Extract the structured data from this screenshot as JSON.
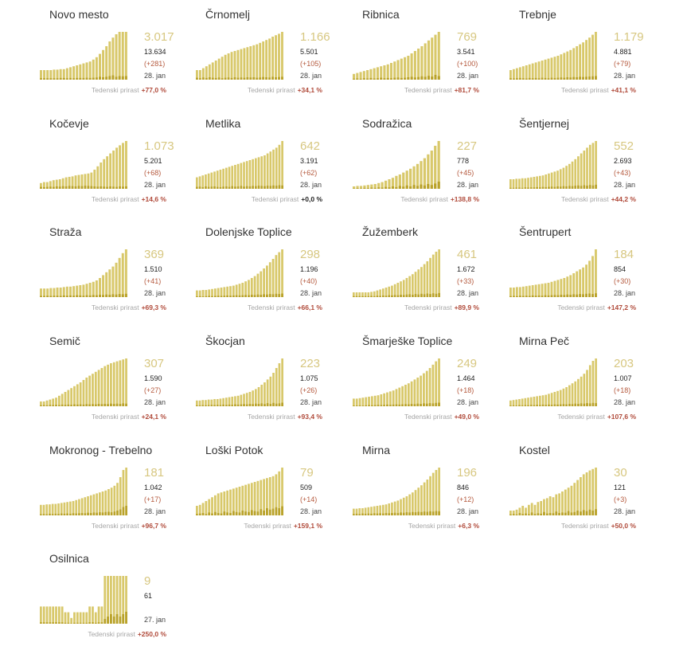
{
  "labels": {
    "growth": "Tedenski prirast"
  },
  "colors": {
    "active_fill": "#d7c97a",
    "bar": "#d8c86a",
    "new_bar": "#b9a22a",
    "growth_positive": "#b04a3a"
  },
  "chart_data": [
    {
      "type": "bar",
      "name": "Novo mesto",
      "value": "3.017",
      "total": "13.634",
      "delta": "(+281)",
      "date": "28. jan",
      "growth": "+77,0 %",
      "active": [
        20,
        20,
        20,
        20,
        21,
        21,
        22,
        22,
        24,
        26,
        28,
        30,
        32,
        34,
        36,
        38,
        42,
        47,
        54,
        62,
        70,
        80,
        88,
        95,
        100,
        100,
        100
      ],
      "new": [
        6,
        6,
        6,
        6,
        6,
        6,
        7,
        7,
        6,
        7,
        6,
        7,
        7,
        7,
        8,
        7,
        8,
        9,
        12,
        10,
        12,
        15,
        18,
        12,
        15,
        14,
        15
      ]
    },
    {
      "type": "bar",
      "name": "Črnomelj",
      "value": "1.166",
      "total": "5.501",
      "delta": "(+105)",
      "date": "28. jan",
      "growth": "+34,1 %",
      "active": [
        20,
        20,
        24,
        28,
        32,
        36,
        40,
        44,
        48,
        52,
        55,
        58,
        60,
        62,
        64,
        66,
        68,
        70,
        72,
        74,
        77,
        80,
        83,
        86,
        90,
        93,
        96,
        100
      ],
      "new": [
        8,
        6,
        9,
        7,
        10,
        8,
        7,
        9,
        6,
        8,
        9,
        7,
        10,
        8,
        9,
        8,
        10,
        9,
        10,
        8,
        9,
        11,
        10,
        9,
        12,
        10,
        11,
        12
      ]
    },
    {
      "type": "bar",
      "name": "Ribnica",
      "value": "769",
      "total": "3.541",
      "delta": "(+100)",
      "date": "28. jan",
      "growth": "+81,7 %",
      "active": [
        12,
        14,
        16,
        18,
        20,
        22,
        24,
        26,
        28,
        30,
        32,
        35,
        38,
        41,
        44,
        47,
        50,
        55,
        60,
        65,
        70,
        76,
        82,
        88,
        94,
        100
      ],
      "new": [
        4,
        5,
        4,
        6,
        5,
        7,
        5,
        6,
        8,
        6,
        7,
        6,
        8,
        9,
        7,
        8,
        10,
        12,
        9,
        11,
        14,
        12,
        16,
        13,
        20,
        15
      ]
    },
    {
      "type": "bar",
      "name": "Trebnje",
      "value": "1.179",
      "total": "4.881",
      "delta": "(+79)",
      "date": "28. jan",
      "growth": "+41,1 %",
      "active": [
        20,
        22,
        24,
        26,
        28,
        30,
        32,
        34,
        36,
        38,
        40,
        42,
        44,
        46,
        48,
        50,
        53,
        56,
        59,
        62,
        66,
        70,
        74,
        78,
        83,
        88,
        94,
        100
      ],
      "new": [
        6,
        5,
        6,
        7,
        6,
        5,
        7,
        6,
        7,
        6,
        8,
        7,
        6,
        8,
        7,
        8,
        9,
        8,
        10,
        9,
        11,
        10,
        12,
        11,
        12,
        13,
        14,
        15
      ]
    },
    {
      "type": "bar",
      "name": "Kočevje",
      "value": "1.073",
      "total": "5.201",
      "delta": "(+68)",
      "date": "28. jan",
      "growth": "+14,6 %",
      "active": [
        12,
        14,
        14,
        16,
        18,
        19,
        20,
        22,
        24,
        25,
        26,
        28,
        29,
        30,
        31,
        32,
        34,
        40,
        47,
        55,
        62,
        68,
        74,
        80,
        86,
        91,
        96,
        100
      ],
      "new": [
        8,
        7,
        8,
        9,
        8,
        10,
        9,
        11,
        10,
        12,
        11,
        10,
        12,
        11,
        13,
        12,
        11,
        10,
        9,
        10,
        9,
        8,
        10,
        9,
        8,
        10,
        9,
        10
      ]
    },
    {
      "type": "bar",
      "name": "Metlika",
      "value": "642",
      "total": "3.191",
      "delta": "(+62)",
      "date": "28. jan",
      "growth": "+0,0 %",
      "growth_zero": true,
      "active": [
        24,
        26,
        28,
        30,
        32,
        34,
        36,
        38,
        40,
        42,
        44,
        46,
        48,
        50,
        52,
        54,
        56,
        58,
        60,
        62,
        64,
        66,
        68,
        70,
        74,
        78,
        82,
        86,
        92,
        100
      ],
      "new": [
        8,
        9,
        7,
        10,
        8,
        9,
        10,
        8,
        7,
        9,
        10,
        8,
        11,
        9,
        10,
        12,
        9,
        11,
        10,
        12,
        11,
        13,
        12,
        11,
        13,
        12,
        14,
        13,
        15,
        14
      ]
    },
    {
      "type": "bar",
      "name": "Sodražica",
      "value": "227",
      "total": "778",
      "delta": "(+45)",
      "date": "28. jan",
      "growth": "+138,8 %",
      "active": [
        5,
        6,
        6,
        7,
        8,
        9,
        10,
        12,
        14,
        17,
        20,
        23,
        27,
        30,
        34,
        38,
        42,
        47,
        52,
        58,
        64,
        72,
        80,
        90,
        100
      ],
      "new": [
        2,
        3,
        2,
        4,
        3,
        5,
        4,
        6,
        5,
        8,
        6,
        10,
        7,
        12,
        9,
        14,
        10,
        16,
        12,
        18,
        14,
        20,
        16,
        22,
        30
      ]
    },
    {
      "type": "bar",
      "name": "Šentjernej",
      "value": "552",
      "total": "2.693",
      "delta": "(+43)",
      "date": "28. jan",
      "growth": "+44,2 %",
      "active": [
        20,
        20,
        21,
        21,
        22,
        22,
        23,
        24,
        25,
        26,
        27,
        28,
        30,
        32,
        34,
        36,
        38,
        41,
        44,
        48,
        52,
        57,
        62,
        68,
        74,
        80,
        86,
        92,
        96,
        100
      ],
      "new": [
        4,
        4,
        5,
        5,
        4,
        6,
        5,
        6,
        6,
        7,
        6,
        8,
        7,
        8,
        9,
        8,
        10,
        9,
        11,
        10,
        12,
        11,
        13,
        14,
        12,
        15,
        13,
        16,
        14,
        17
      ]
    },
    {
      "type": "bar",
      "name": "Straža",
      "value": "369",
      "total": "1.510",
      "delta": "(+41)",
      "date": "28. jan",
      "growth": "+69,3 %",
      "active": [
        18,
        18,
        18,
        19,
        19,
        20,
        20,
        21,
        22,
        22,
        23,
        24,
        25,
        26,
        28,
        30,
        32,
        35,
        40,
        46,
        52,
        58,
        64,
        72,
        82,
        92,
        100
      ],
      "new": [
        5,
        5,
        6,
        5,
        6,
        6,
        5,
        7,
        6,
        7,
        6,
        8,
        7,
        6,
        8,
        7,
        9,
        8,
        10,
        9,
        11,
        10,
        12,
        11,
        13,
        12,
        14
      ]
    },
    {
      "type": "bar",
      "name": "Dolenjske Toplice",
      "value": "298",
      "total": "1.196",
      "delta": "(+40)",
      "date": "28. jan",
      "growth": "+66,1 %",
      "active": [
        14,
        14,
        15,
        15,
        16,
        17,
        18,
        19,
        20,
        21,
        22,
        23,
        24,
        26,
        28,
        30,
        33,
        36,
        40,
        44,
        49,
        54,
        60,
        66,
        73,
        80,
        88,
        94,
        100
      ],
      "new": [
        3,
        4,
        3,
        4,
        5,
        4,
        5,
        6,
        5,
        6,
        7,
        6,
        7,
        8,
        7,
        8,
        9,
        8,
        10,
        9,
        11,
        10,
        12,
        11,
        13,
        12,
        14,
        13,
        15
      ]
    },
    {
      "type": "bar",
      "name": "Žužemberk",
      "value": "461",
      "total": "1.672",
      "delta": "(+33)",
      "date": "28. jan",
      "growth": "+89,9 %",
      "active": [
        10,
        10,
        10,
        10,
        10,
        10,
        11,
        12,
        14,
        16,
        18,
        20,
        22,
        24,
        27,
        30,
        33,
        36,
        40,
        44,
        48,
        53,
        58,
        63,
        69,
        75,
        82,
        89,
        95,
        100
      ],
      "new": [
        4,
        4,
        4,
        4,
        4,
        4,
        5,
        4,
        6,
        5,
        7,
        6,
        8,
        7,
        9,
        8,
        10,
        9,
        11,
        12,
        10,
        13,
        11,
        14,
        12,
        15,
        13,
        16,
        14,
        17
      ]
    },
    {
      "type": "bar",
      "name": "Šentrupert",
      "value": "184",
      "total": "854",
      "delta": "(+30)",
      "date": "28. jan",
      "growth": "+147,2 %",
      "active": [
        20,
        20,
        21,
        21,
        22,
        23,
        24,
        25,
        26,
        27,
        28,
        29,
        30,
        32,
        34,
        36,
        38,
        40,
        43,
        46,
        50,
        54,
        58,
        62,
        68,
        76,
        86,
        100
      ],
      "new": [
        4,
        5,
        4,
        6,
        5,
        6,
        5,
        7,
        6,
        7,
        6,
        8,
        7,
        8,
        9,
        8,
        10,
        9,
        11,
        10,
        12,
        11,
        13,
        12,
        14,
        15,
        13,
        16
      ]
    },
    {
      "type": "bar",
      "name": "Semič",
      "value": "307",
      "total": "1.590",
      "delta": "(+27)",
      "date": "28. jan",
      "growth": "+24,1 %",
      "active": [
        10,
        10,
        12,
        14,
        16,
        18,
        22,
        26,
        30,
        34,
        38,
        42,
        46,
        50,
        55,
        60,
        64,
        68,
        72,
        76,
        80,
        84,
        87,
        90,
        92,
        94,
        96,
        98,
        100
      ],
      "new": [
        4,
        5,
        4,
        6,
        5,
        6,
        5,
        7,
        6,
        7,
        6,
        8,
        7,
        8,
        7,
        9,
        8,
        9,
        8,
        10,
        9,
        10,
        9,
        11,
        10,
        11,
        10,
        12,
        11
      ]
    },
    {
      "type": "bar",
      "name": "Škocjan",
      "value": "223",
      "total": "1.075",
      "delta": "(+26)",
      "date": "28. jan",
      "growth": "+93,4 %",
      "active": [
        12,
        12,
        13,
        13,
        14,
        14,
        15,
        15,
        16,
        17,
        18,
        19,
        20,
        21,
        22,
        24,
        26,
        28,
        30,
        33,
        36,
        40,
        45,
        50,
        56,
        62,
        70,
        80,
        90,
        100
      ],
      "new": [
        4,
        4,
        5,
        4,
        5,
        6,
        5,
        6,
        5,
        7,
        6,
        7,
        6,
        8,
        7,
        8,
        9,
        8,
        10,
        9,
        11,
        10,
        12,
        9,
        13,
        10,
        14,
        11,
        12,
        15
      ]
    },
    {
      "type": "bar",
      "name": "Šmarješke Toplice",
      "value": "249",
      "total": "1.464",
      "delta": "(+18)",
      "date": "28. jan",
      "growth": "+49,0 %",
      "active": [
        16,
        16,
        17,
        18,
        19,
        20,
        21,
        22,
        23,
        25,
        27,
        29,
        31,
        33,
        36,
        39,
        42,
        45,
        48,
        52,
        56,
        60,
        64,
        69,
        74,
        80,
        87,
        94,
        100
      ],
      "new": [
        3,
        3,
        4,
        3,
        4,
        5,
        4,
        5,
        6,
        5,
        6,
        7,
        6,
        7,
        8,
        7,
        8,
        9,
        8,
        10,
        9,
        11,
        10,
        12,
        11,
        13,
        12,
        14,
        15
      ]
    },
    {
      "type": "bar",
      "name": "Mirna Peč",
      "value": "203",
      "total": "1.007",
      "delta": "(+18)",
      "date": "28. jan",
      "growth": "+107,6 %",
      "active": [
        12,
        13,
        14,
        15,
        16,
        17,
        18,
        19,
        20,
        21,
        22,
        23,
        24,
        26,
        28,
        30,
        32,
        34,
        37,
        40,
        44,
        48,
        52,
        57,
        62,
        68,
        76,
        86,
        95,
        100
      ],
      "new": [
        3,
        4,
        3,
        5,
        4,
        5,
        4,
        6,
        5,
        6,
        5,
        7,
        6,
        7,
        6,
        8,
        7,
        8,
        9,
        8,
        10,
        9,
        11,
        10,
        12,
        11,
        13,
        12,
        14,
        13
      ]
    },
    {
      "type": "bar",
      "name": "Mokronog - Trebelno",
      "value": "181",
      "total": "1.042",
      "delta": "(+17)",
      "date": "28. jan",
      "growth": "+96,7 %",
      "active": [
        22,
        22,
        23,
        23,
        24,
        24,
        25,
        26,
        27,
        28,
        29,
        30,
        32,
        34,
        36,
        38,
        40,
        42,
        44,
        46,
        48,
        50,
        52,
        55,
        58,
        62,
        68,
        80,
        95,
        100
      ],
      "new": [
        5,
        6,
        5,
        7,
        6,
        7,
        6,
        8,
        7,
        8,
        7,
        9,
        8,
        9,
        10,
        9,
        11,
        10,
        12,
        11,
        13,
        12,
        14,
        15,
        13,
        16,
        20,
        25,
        35,
        40
      ]
    },
    {
      "type": "bar",
      "name": "Loški Potok",
      "value": "79",
      "total": "509",
      "delta": "(+14)",
      "date": "28. jan",
      "growth": "+159,1 %",
      "active": [
        20,
        22,
        26,
        30,
        34,
        38,
        42,
        46,
        48,
        50,
        52,
        54,
        56,
        58,
        60,
        62,
        64,
        66,
        68,
        70,
        72,
        74,
        76,
        78,
        80,
        82,
        86,
        92,
        100
      ],
      "new": [
        6,
        8,
        10,
        6,
        12,
        8,
        14,
        10,
        8,
        16,
        12,
        10,
        18,
        14,
        12,
        20,
        16,
        14,
        22,
        18,
        16,
        26,
        20,
        30,
        24,
        28,
        34,
        30,
        38
      ]
    },
    {
      "type": "bar",
      "name": "Mirna",
      "value": "196",
      "total": "846",
      "delta": "(+12)",
      "date": "28. jan",
      "growth": "+6,3 %",
      "active": [
        14,
        14,
        15,
        15,
        16,
        17,
        18,
        19,
        20,
        21,
        22,
        23,
        25,
        27,
        29,
        31,
        34,
        37,
        40,
        44,
        48,
        53,
        58,
        63,
        69,
        75,
        82,
        89,
        95,
        100
      ],
      "new": [
        6,
        7,
        6,
        8,
        7,
        8,
        7,
        9,
        8,
        9,
        8,
        10,
        9,
        10,
        11,
        10,
        12,
        11,
        13,
        12,
        14,
        13,
        15,
        14,
        16,
        15,
        17,
        16,
        18,
        17
      ]
    },
    {
      "type": "bar",
      "name": "Kostel",
      "value": "30",
      "total": "121",
      "delta": "(+3)",
      "date": "28. jan",
      "growth": "+50,0 %",
      "active": [
        10,
        10,
        12,
        16,
        20,
        16,
        22,
        26,
        22,
        28,
        30,
        34,
        36,
        40,
        38,
        44,
        46,
        50,
        54,
        58,
        62,
        68,
        74,
        80,
        86,
        90,
        94,
        97,
        100
      ],
      "new": [
        4,
        6,
        4,
        10,
        6,
        8,
        5,
        12,
        6,
        9,
        7,
        14,
        8,
        10,
        9,
        16,
        10,
        12,
        11,
        18,
        12,
        14,
        20,
        16,
        22,
        18,
        24,
        20,
        26
      ]
    },
    {
      "type": "bar",
      "name": "Osilnica",
      "value": "9",
      "total": "61",
      "delta": "",
      "date": "27. jan",
      "growth": "+250,0 %",
      "active": [
        36,
        36,
        36,
        36,
        36,
        36,
        36,
        36,
        24,
        24,
        12,
        24,
        24,
        24,
        24,
        24,
        36,
        36,
        24,
        36,
        36,
        100,
        100,
        100,
        100,
        100,
        100,
        100,
        100
      ],
      "new": [
        6,
        6,
        6,
        6,
        6,
        6,
        6,
        6,
        4,
        4,
        2,
        4,
        4,
        4,
        4,
        4,
        6,
        6,
        4,
        6,
        6,
        20,
        30,
        40,
        30,
        40,
        30,
        40,
        50
      ]
    }
  ]
}
